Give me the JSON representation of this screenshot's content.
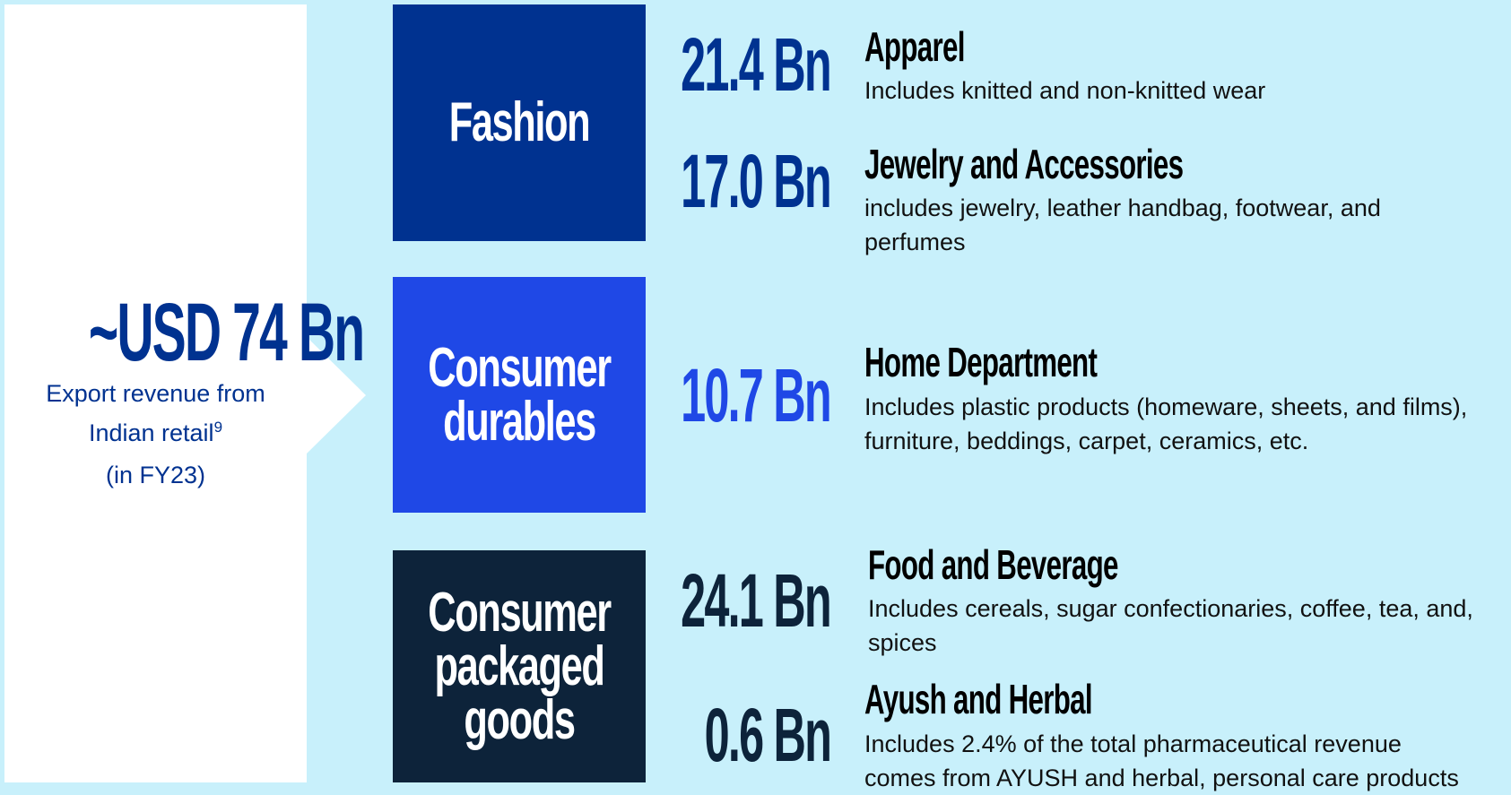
{
  "summary": {
    "value": "~USD 74 Bn",
    "caption": "Export revenue from Indian retail",
    "footnote": "9",
    "period": "(in FY23)"
  },
  "groups": [
    {
      "label": "Fashion",
      "items": [
        {
          "value": "21.4 Bn",
          "title": "Apparel",
          "description": "Includes knitted and non-knitted wear"
        },
        {
          "value": "17.0 Bn",
          "title": "Jewelry and Accessories",
          "description": "includes jewelry, leather handbag, footwear, and perfumes"
        }
      ]
    },
    {
      "label": "Consumer durables",
      "items": [
        {
          "value": "10.7 Bn",
          "title": "Home Department",
          "description": "Includes plastic products (homeware, sheets, and films), furniture, beddings, carpet, ceramics, etc."
        }
      ]
    },
    {
      "label": "Consumer packaged goods",
      "items": [
        {
          "value": "24.1 Bn",
          "title": "Food and Beverage",
          "description": "Includes cereals, sugar confectionaries, coffee, tea, and, spices"
        },
        {
          "value": "0.6 Bn",
          "title": "Ayush and Herbal",
          "description": "Includes 2.4% of the total pharmaceutical revenue comes from AYUSH and herbal, personal care products"
        }
      ]
    }
  ]
}
